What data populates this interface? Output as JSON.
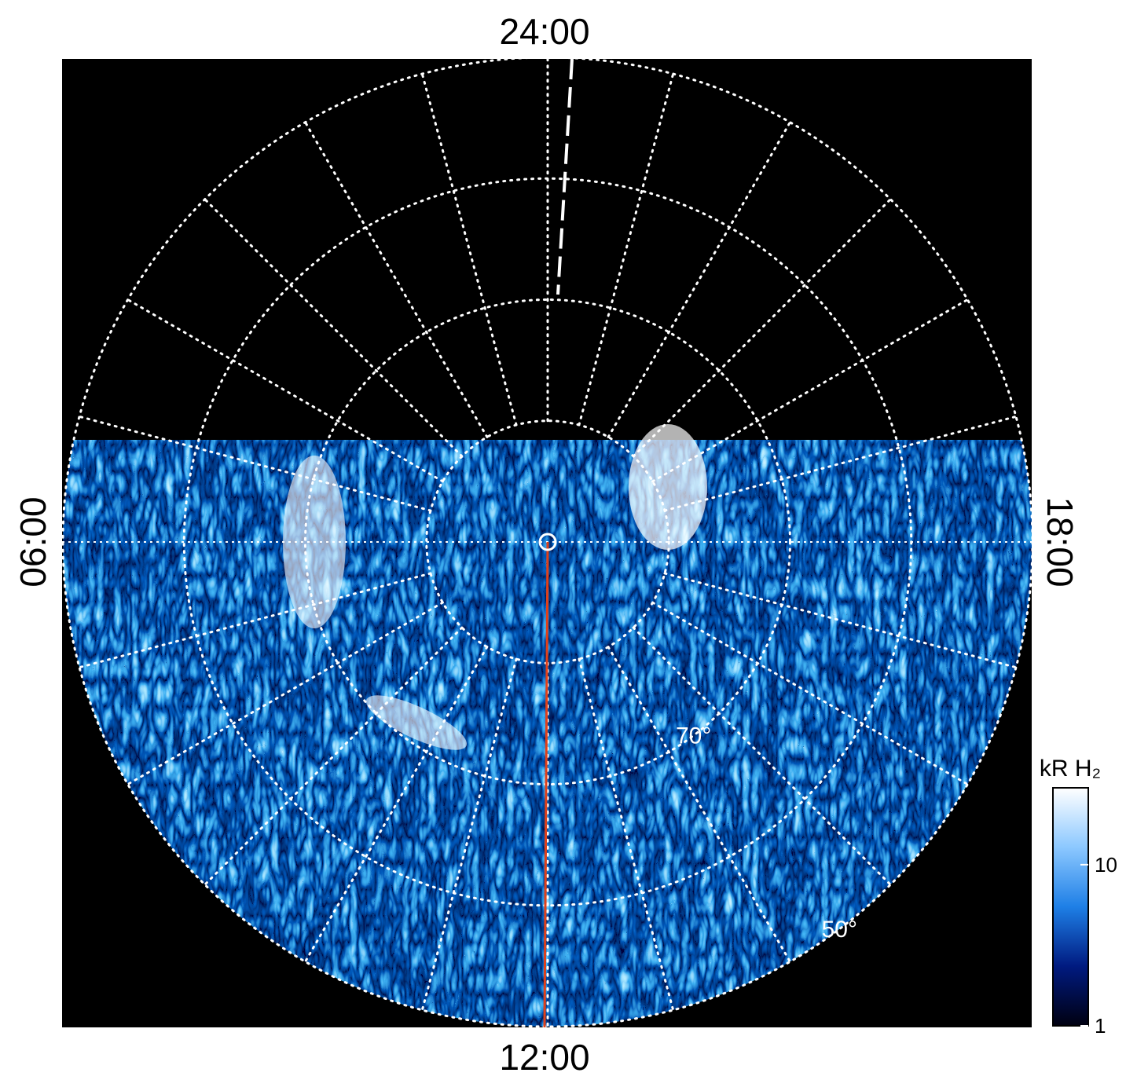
{
  "chart_data": {
    "type": "polar-image",
    "lon_labels": {
      "top": "24:00",
      "bottom": "12:00",
      "left": "06:00",
      "right": "18:00"
    },
    "rlim": [
      90,
      50
    ],
    "lat_rings": [
      80,
      70,
      60,
      50
    ],
    "lat_labels": [
      {
        "value": 70,
        "label": "70°"
      },
      {
        "value": 50,
        "label": "50°"
      }
    ],
    "colorbar": {
      "label": "kR H₂",
      "clim": [
        1,
        30
      ],
      "ticks": [
        1,
        10
      ],
      "log": true,
      "colors": [
        "#000010",
        "#001a80",
        "#1e7fe6",
        "#8cc8ff",
        "#ffffff"
      ]
    }
  }
}
